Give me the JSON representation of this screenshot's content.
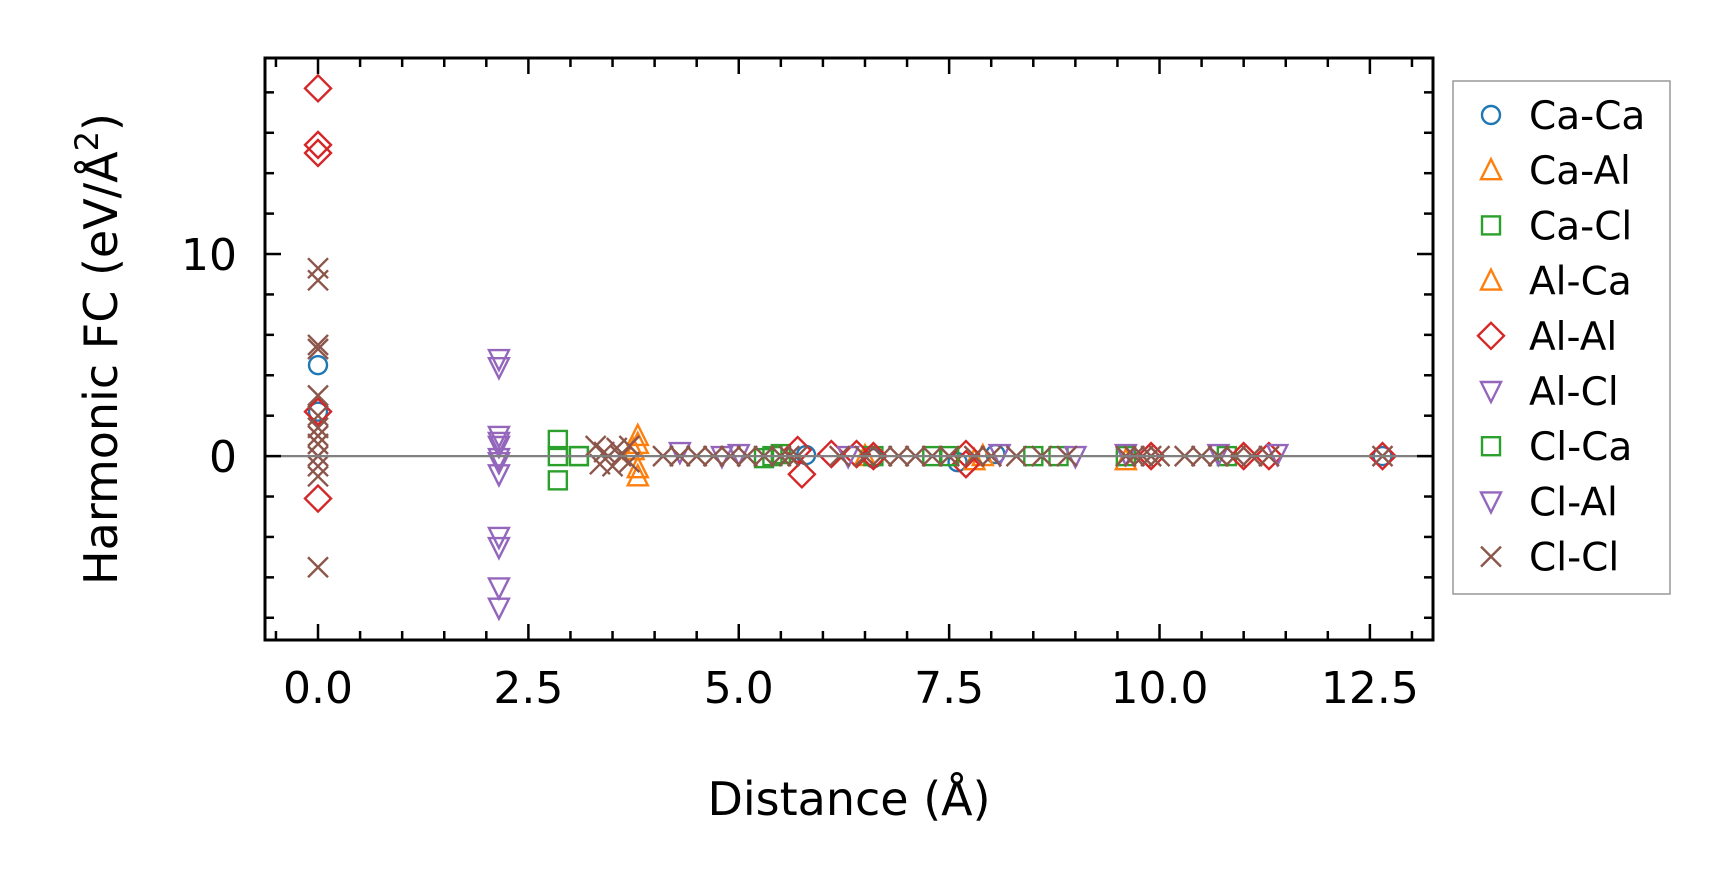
{
  "chart_data": {
    "type": "scatter",
    "title": "",
    "xlabel": "Distance (Å)",
    "ylabel_parts": [
      "Harmonic FC (eV/Å",
      "2",
      ")"
    ],
    "xlim": [
      -0.63,
      13.25
    ],
    "ylim": [
      -9.1,
      19.7
    ],
    "xticks": [
      0.0,
      2.5,
      5.0,
      7.5,
      10.0,
      12.5
    ],
    "xtick_labels": [
      "0.0",
      "2.5",
      "5.0",
      "7.5",
      "10.0",
      "12.5"
    ],
    "yticks": [
      0,
      10
    ],
    "ytick_labels": [
      "0",
      "10"
    ],
    "grid": false,
    "zero_line": true,
    "legend_position": "outside-right",
    "series": [
      {
        "name": "Ca-Ca",
        "marker": "circle",
        "color": "#1f77b4",
        "points": [
          [
            0,
            4.5
          ],
          [
            0,
            2.2
          ],
          [
            5.8,
            0.05
          ],
          [
            6.6,
            -0.1
          ],
          [
            7.6,
            -0.3
          ],
          [
            8.05,
            0.1
          ],
          [
            12.65,
            0
          ]
        ]
      },
      {
        "name": "Ca-Al",
        "marker": "triangle-up",
        "color": "#ff7f0e",
        "points": [
          [
            3.8,
            1.0
          ],
          [
            3.8,
            -1.0
          ],
          [
            3.75,
            0.3
          ],
          [
            6.5,
            0
          ],
          [
            7.8,
            -0.2
          ],
          [
            9.6,
            -0.2
          ]
        ]
      },
      {
        "name": "Ca-Cl",
        "marker": "square",
        "color": "#2ca02c",
        "points": [
          [
            2.85,
            0.8
          ],
          [
            2.85,
            -1.2
          ],
          [
            2.85,
            0
          ],
          [
            3.1,
            0
          ],
          [
            5.3,
            -0.1
          ],
          [
            5.5,
            0.1
          ],
          [
            6.6,
            0
          ],
          [
            7.3,
            0
          ],
          [
            8.8,
            0
          ],
          [
            9.6,
            0
          ],
          [
            10.8,
            0
          ]
        ]
      },
      {
        "name": "Al-Ca",
        "marker": "triangle-up",
        "color": "#ff7f0e",
        "points": [
          [
            3.8,
            0.6
          ],
          [
            3.8,
            -0.6
          ],
          [
            7.9,
            0
          ]
        ]
      },
      {
        "name": "Al-Al",
        "marker": "diamond",
        "color": "#d62728",
        "points": [
          [
            0,
            18.2
          ],
          [
            0,
            15.4
          ],
          [
            0,
            15.0
          ],
          [
            0,
            2.2
          ],
          [
            0,
            -2.1
          ],
          [
            5.7,
            0.3
          ],
          [
            5.75,
            -0.9
          ],
          [
            6.1,
            0.1
          ],
          [
            6.4,
            0.1
          ],
          [
            6.6,
            0
          ],
          [
            7.7,
            0.1
          ],
          [
            7.7,
            -0.4
          ],
          [
            9.9,
            0
          ],
          [
            11.0,
            0
          ],
          [
            11.3,
            0
          ],
          [
            12.65,
            0
          ]
        ]
      },
      {
        "name": "Al-Cl",
        "marker": "triangle-down",
        "color": "#9467bd",
        "points": [
          [
            2.15,
            4.8
          ],
          [
            2.15,
            4.4
          ],
          [
            2.15,
            1.0
          ],
          [
            2.15,
            0.5
          ],
          [
            2.15,
            -0.3
          ],
          [
            2.15,
            -0.9
          ],
          [
            2.15,
            -4.0
          ],
          [
            2.15,
            -4.5
          ],
          [
            2.15,
            -6.5
          ],
          [
            2.15,
            -7.5
          ],
          [
            4.3,
            0.2
          ],
          [
            5.0,
            0.1
          ],
          [
            8.1,
            0.1
          ],
          [
            9.6,
            0.1
          ],
          [
            10.7,
            0.1
          ],
          [
            11.4,
            0.1
          ]
        ]
      },
      {
        "name": "Cl-Ca",
        "marker": "square",
        "color": "#2ca02c",
        "points": [
          [
            3.1,
            0
          ],
          [
            5.4,
            0
          ],
          [
            7.5,
            0
          ],
          [
            8.5,
            0
          ]
        ]
      },
      {
        "name": "Cl-Al",
        "marker": "triangle-down",
        "color": "#9467bd",
        "points": [
          [
            2.15,
            0.7
          ],
          [
            2.15,
            -0.1
          ],
          [
            4.8,
            0
          ],
          [
            6.3,
            0
          ],
          [
            9.0,
            0
          ]
        ]
      },
      {
        "name": "Cl-Cl",
        "marker": "x",
        "color": "#8c564b",
        "points": [
          [
            0,
            9.3
          ],
          [
            0,
            8.7
          ],
          [
            0,
            5.5
          ],
          [
            0,
            5.3
          ],
          [
            0,
            3
          ],
          [
            0,
            2
          ],
          [
            0,
            1.4
          ],
          [
            0,
            1
          ],
          [
            0,
            0.6
          ],
          [
            0,
            0
          ],
          [
            0,
            -0.5
          ],
          [
            0,
            -1
          ],
          [
            0,
            -5.5
          ],
          [
            3.3,
            0.5
          ],
          [
            3.35,
            -0.4
          ],
          [
            3.4,
            0.2
          ],
          [
            3.5,
            -0.5
          ],
          [
            3.55,
            0.4
          ],
          [
            3.6,
            0
          ],
          [
            3.7,
            -0.3
          ],
          [
            3.7,
            0.5
          ],
          [
            4.1,
            0
          ],
          [
            4.3,
            0
          ],
          [
            4.5,
            0
          ],
          [
            4.7,
            0
          ],
          [
            4.9,
            0
          ],
          [
            5.1,
            0
          ],
          [
            5.3,
            0
          ],
          [
            5.5,
            0
          ],
          [
            5.6,
            0
          ],
          [
            5.7,
            0
          ],
          [
            6.2,
            0
          ],
          [
            6.5,
            0
          ],
          [
            6.7,
            0
          ],
          [
            6.9,
            0
          ],
          [
            7.1,
            0
          ],
          [
            7.3,
            0
          ],
          [
            7.5,
            0
          ],
          [
            7.8,
            0
          ],
          [
            8.0,
            0
          ],
          [
            8.3,
            0
          ],
          [
            8.6,
            0
          ],
          [
            8.9,
            0
          ],
          [
            9.6,
            0
          ],
          [
            9.7,
            0
          ],
          [
            9.8,
            0
          ],
          [
            9.9,
            0
          ],
          [
            10.0,
            0
          ],
          [
            10.3,
            0
          ],
          [
            10.5,
            0
          ],
          [
            10.7,
            0
          ],
          [
            10.9,
            0
          ],
          [
            11.1,
            0
          ],
          [
            11.3,
            0
          ],
          [
            12.65,
            0
          ]
        ]
      }
    ]
  }
}
